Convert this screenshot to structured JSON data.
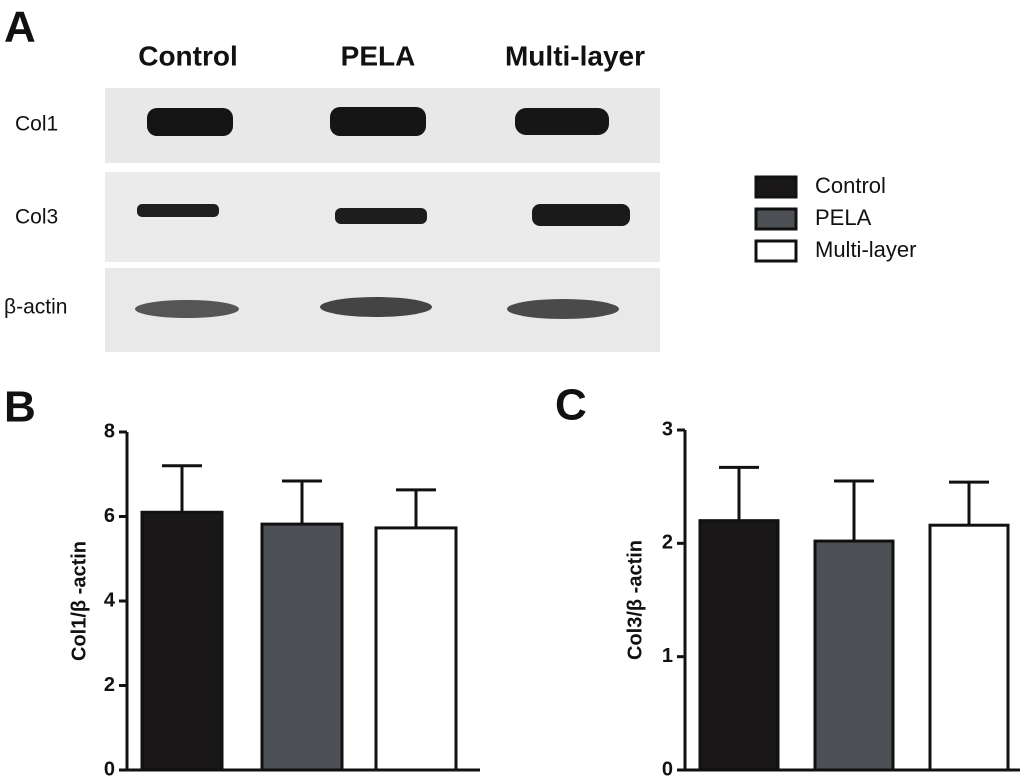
{
  "blot": {
    "label": "A",
    "columns": [
      "Control",
      "PELA",
      "Multi-layer"
    ],
    "rows": [
      "Col1",
      "Col3",
      "β-actin"
    ]
  },
  "legend": [
    {
      "name": "Control",
      "color": "#1a1718"
    },
    {
      "name": "PELA",
      "color": "#4d5054"
    },
    {
      "name": "Multi-layer",
      "color": "#ffffff"
    }
  ],
  "chart_data": [
    {
      "type": "bar",
      "label": "B",
      "ylabel": "Col1/β -actin",
      "ylim": [
        0,
        8
      ],
      "yticks": [
        0,
        2,
        4,
        6,
        8
      ],
      "series": [
        {
          "color": "#1a1718",
          "values": [
            6.1
          ],
          "errors": [
            1.1
          ]
        },
        {
          "color": "#4d5054",
          "values": [
            5.82
          ],
          "errors": [
            1.02
          ]
        },
        {
          "color": "#ffffff",
          "values": [
            5.73
          ],
          "errors": [
            0.9
          ]
        }
      ]
    },
    {
      "type": "bar",
      "label": "C",
      "ylabel": "Col3/β -actin",
      "ylim": [
        0,
        3
      ],
      "yticks": [
        0,
        1,
        2,
        3
      ],
      "series": [
        {
          "color": "#1a1718",
          "values": [
            2.2
          ],
          "errors": [
            0.47
          ]
        },
        {
          "color": "#4d5054",
          "values": [
            2.02
          ],
          "errors": [
            0.53
          ]
        },
        {
          "color": "#ffffff",
          "values": [
            2.16
          ],
          "errors": [
            0.38
          ]
        }
      ]
    }
  ]
}
